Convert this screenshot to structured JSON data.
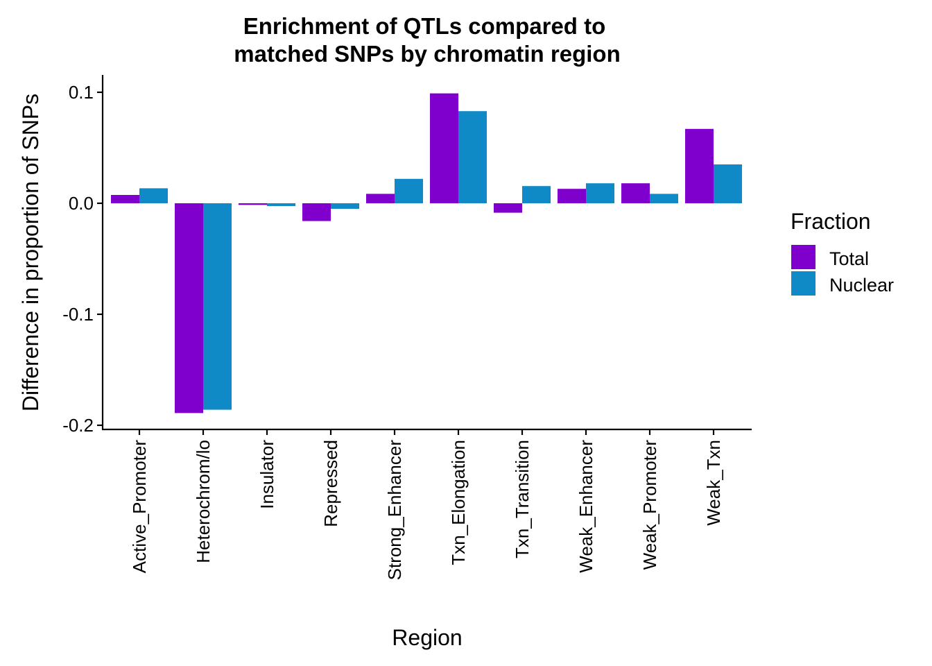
{
  "chart_data": {
    "type": "bar",
    "title_lines": [
      "Enrichment of QTLs compared to",
      "matched SNPs by chromatin region"
    ],
    "xlabel": "Region",
    "ylabel": "Difference in proportion of SNPs",
    "ylim": [
      -0.2,
      0.1
    ],
    "yticks": [
      0.1,
      0.0,
      -0.1,
      -0.2
    ],
    "ytick_labels": [
      "0.1",
      "0.0",
      "-0.1",
      "-0.2"
    ],
    "grid": false,
    "categories": [
      "Active_Promoter",
      "Heterochrom/lo",
      "Insulator",
      "Repressed",
      "Strong_Enhancer",
      "Txn_Elongation",
      "Txn_Transition",
      "Weak_Enhancer",
      "Weak_Promoter",
      "Weak_Txn"
    ],
    "series": [
      {
        "name": "Total",
        "color": "#7F00CC",
        "values": [
          0.0075,
          -0.189,
          -0.0015,
          -0.016,
          0.0085,
          0.099,
          -0.0085,
          0.013,
          0.018,
          0.067
        ]
      },
      {
        "name": "Nuclear",
        "color": "#1089C7",
        "values": [
          0.0135,
          -0.186,
          -0.0025,
          -0.005,
          0.022,
          0.083,
          0.0155,
          0.018,
          0.0085,
          0.035
        ]
      }
    ],
    "legend": {
      "title": "Fraction",
      "placement": "right"
    }
  }
}
